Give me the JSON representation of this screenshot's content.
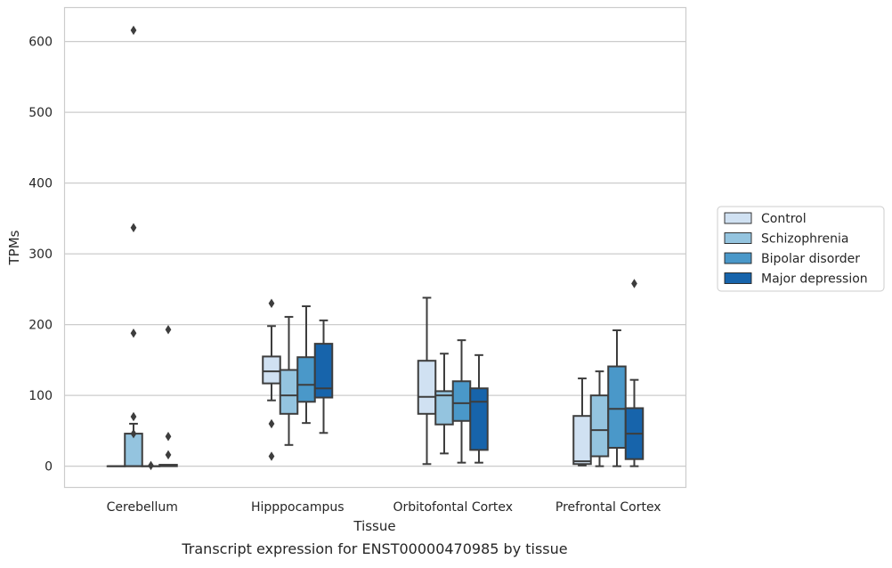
{
  "chart_data": {
    "type": "box",
    "title": "",
    "caption": "Transcript expression for ENST00000470985 by tissue",
    "xlabel": "Tissue",
    "ylabel": "TPMs",
    "ylim": [
      -30,
      648
    ],
    "yticks": [
      0,
      100,
      200,
      300,
      400,
      500,
      600
    ],
    "grid": "horizontal",
    "legend_position": "right",
    "categories": [
      "Cerebellum",
      "Hipppocampus",
      "Orbitofontal Cortex",
      "Prefrontal Cortex"
    ],
    "series": [
      {
        "name": "Control",
        "color": "#d0e1f2",
        "boxes": [
          {
            "whislo": 0,
            "q1": 0,
            "med": 0,
            "q3": 0,
            "whishi": 0,
            "fliers": []
          },
          {
            "whislo": 93,
            "q1": 117,
            "med": 134,
            "q3": 155,
            "whishi": 198,
            "fliers": [
              230,
              60,
              14
            ]
          },
          {
            "whislo": 3,
            "q1": 74,
            "med": 98,
            "q3": 149,
            "whishi": 238,
            "fliers": []
          },
          {
            "whislo": 1,
            "q1": 3,
            "med": 7,
            "q3": 71,
            "whishi": 124,
            "fliers": []
          }
        ]
      },
      {
        "name": "Schizophrenia",
        "color": "#94c4df",
        "boxes": [
          {
            "whislo": 0,
            "q1": 0,
            "med": 0,
            "q3": 46,
            "whishi": 60,
            "fliers": [
              616,
              337,
              188,
              70,
              46
            ]
          },
          {
            "whislo": 30,
            "q1": 74,
            "med": 100,
            "q3": 136,
            "whishi": 211,
            "fliers": []
          },
          {
            "whislo": 18,
            "q1": 59,
            "med": 100,
            "q3": 106,
            "whishi": 159,
            "fliers": []
          },
          {
            "whislo": 0,
            "q1": 14,
            "med": 51,
            "q3": 100,
            "whishi": 134,
            "fliers": []
          }
        ]
      },
      {
        "name": "Bipolar disorder",
        "color": "#4a98c9",
        "boxes": [
          {
            "whislo": 0,
            "q1": 0,
            "med": 0,
            "q3": 0,
            "whishi": 0,
            "fliers": [
              1
            ]
          },
          {
            "whislo": 61,
            "q1": 91,
            "med": 115,
            "q3": 154,
            "whishi": 226,
            "fliers": []
          },
          {
            "whislo": 5,
            "q1": 64,
            "med": 89,
            "q3": 120,
            "whishi": 178,
            "fliers": []
          },
          {
            "whislo": 0,
            "q1": 26,
            "med": 81,
            "q3": 141,
            "whishi": 192,
            "fliers": []
          }
        ]
      },
      {
        "name": "Major depression",
        "color": "#1764ab",
        "boxes": [
          {
            "whislo": 0,
            "q1": 0,
            "med": 1,
            "q3": 2,
            "whishi": 2,
            "fliers": [
              193,
              42,
              16
            ]
          },
          {
            "whislo": 47,
            "q1": 97,
            "med": 110,
            "q3": 173,
            "whishi": 206,
            "fliers": []
          },
          {
            "whislo": 5,
            "q1": 23,
            "med": 91,
            "q3": 110,
            "whishi": 157,
            "fliers": []
          },
          {
            "whislo": 0,
            "q1": 10,
            "med": 46,
            "q3": 82,
            "whishi": 122,
            "fliers": [
              258
            ]
          }
        ]
      }
    ]
  }
}
